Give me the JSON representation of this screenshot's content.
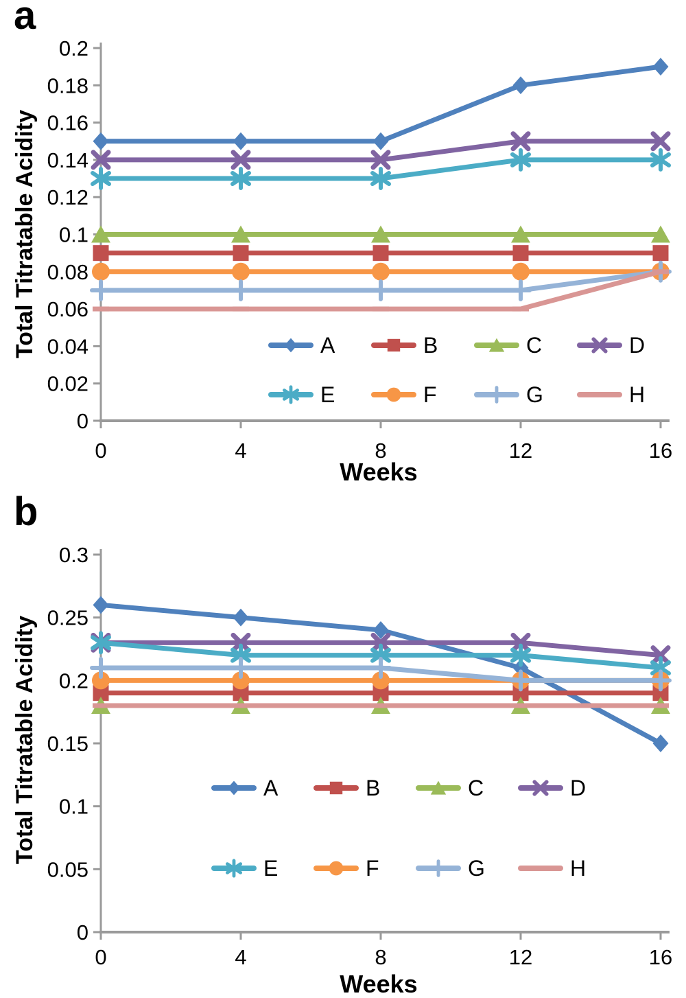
{
  "chart_data": [
    {
      "id": "a",
      "panel_label": "a",
      "type": "line",
      "title": "",
      "xlabel": "Weeks",
      "ylabel": "Total Titratable Acidity",
      "x": [
        0,
        4,
        8,
        12,
        16
      ],
      "x_tick_labels": [
        "0",
        "4",
        "8",
        "12",
        "16"
      ],
      "xlim": [
        0,
        16
      ],
      "ylim": [
        0,
        0.2
      ],
      "y_ticks": [
        0,
        0.02,
        0.04,
        0.06,
        0.08,
        0.1,
        0.12,
        0.14,
        0.16,
        0.18,
        0.2
      ],
      "y_tick_labels": [
        "0",
        "0.02",
        "0.04",
        "0.06",
        "0.08",
        "0.1",
        "0.12",
        "0.14",
        "0.16",
        "0.18",
        "0.2"
      ],
      "grid": false,
      "legend_position": "inside-bottom two rows of four",
      "axis_color": "#9a9a9a",
      "series": [
        {
          "name": "A",
          "color": "#4F81BD",
          "marker": "diamond",
          "values": [
            0.15,
            0.15,
            0.15,
            0.18,
            0.19
          ]
        },
        {
          "name": "B",
          "color": "#C0504D",
          "marker": "square",
          "values": [
            0.09,
            0.09,
            0.09,
            0.09,
            0.09
          ]
        },
        {
          "name": "C",
          "color": "#9BBB59",
          "marker": "triangle",
          "values": [
            0.1,
            0.1,
            0.1,
            0.1,
            0.1
          ]
        },
        {
          "name": "D",
          "color": "#8064A2",
          "marker": "x",
          "values": [
            0.14,
            0.14,
            0.14,
            0.15,
            0.15
          ]
        },
        {
          "name": "E",
          "color": "#4BACC6",
          "marker": "asterisk",
          "values": [
            0.13,
            0.13,
            0.13,
            0.14,
            0.14
          ]
        },
        {
          "name": "F",
          "color": "#F79646",
          "marker": "circle",
          "values": [
            0.08,
            0.08,
            0.08,
            0.08,
            0.08
          ]
        },
        {
          "name": "G",
          "color": "#95B3D7",
          "marker": "plus",
          "values": [
            0.07,
            0.07,
            0.07,
            0.07,
            0.08
          ]
        },
        {
          "name": "H",
          "color": "#D99694",
          "marker": "dash",
          "values": [
            0.06,
            0.06,
            0.06,
            0.06,
            0.08
          ]
        }
      ]
    },
    {
      "id": "b",
      "panel_label": "b",
      "type": "line",
      "title": "",
      "xlabel": "Weeks",
      "ylabel": "Total Titratable Acidity",
      "x": [
        0,
        4,
        8,
        12,
        16
      ],
      "x_tick_labels": [
        "0",
        "4",
        "8",
        "12",
        "16"
      ],
      "xlim": [
        0,
        16
      ],
      "ylim": [
        0,
        0.3
      ],
      "y_ticks": [
        0,
        0.05,
        0.1,
        0.15,
        0.2,
        0.25,
        0.3
      ],
      "y_tick_labels": [
        "0",
        "0.05",
        "0.1",
        "0.15",
        "0.2",
        "0.25",
        "0.3"
      ],
      "grid": false,
      "legend_position": "inside-bottom two rows of four",
      "axis_color": "#9a9a9a",
      "series": [
        {
          "name": "A",
          "color": "#4F81BD",
          "marker": "diamond",
          "values": [
            0.26,
            0.25,
            0.24,
            0.21,
            0.15
          ]
        },
        {
          "name": "B",
          "color": "#C0504D",
          "marker": "square",
          "values": [
            0.19,
            0.19,
            0.19,
            0.19,
            0.19
          ]
        },
        {
          "name": "C",
          "color": "#9BBB59",
          "marker": "triangle",
          "values": [
            0.18,
            0.18,
            0.18,
            0.18,
            0.18
          ]
        },
        {
          "name": "D",
          "color": "#8064A2",
          "marker": "x",
          "values": [
            0.23,
            0.23,
            0.23,
            0.23,
            0.22
          ]
        },
        {
          "name": "E",
          "color": "#4BACC6",
          "marker": "asterisk",
          "values": [
            0.23,
            0.22,
            0.22,
            0.22,
            0.21
          ]
        },
        {
          "name": "F",
          "color": "#F79646",
          "marker": "circle",
          "values": [
            0.2,
            0.2,
            0.2,
            0.2,
            0.2
          ]
        },
        {
          "name": "G",
          "color": "#95B3D7",
          "marker": "plus",
          "values": [
            0.21,
            0.21,
            0.21,
            0.2,
            0.2
          ]
        },
        {
          "name": "H",
          "color": "#D99694",
          "marker": "dash",
          "values": [
            0.18,
            0.18,
            0.18,
            0.18,
            0.18
          ]
        }
      ]
    }
  ]
}
